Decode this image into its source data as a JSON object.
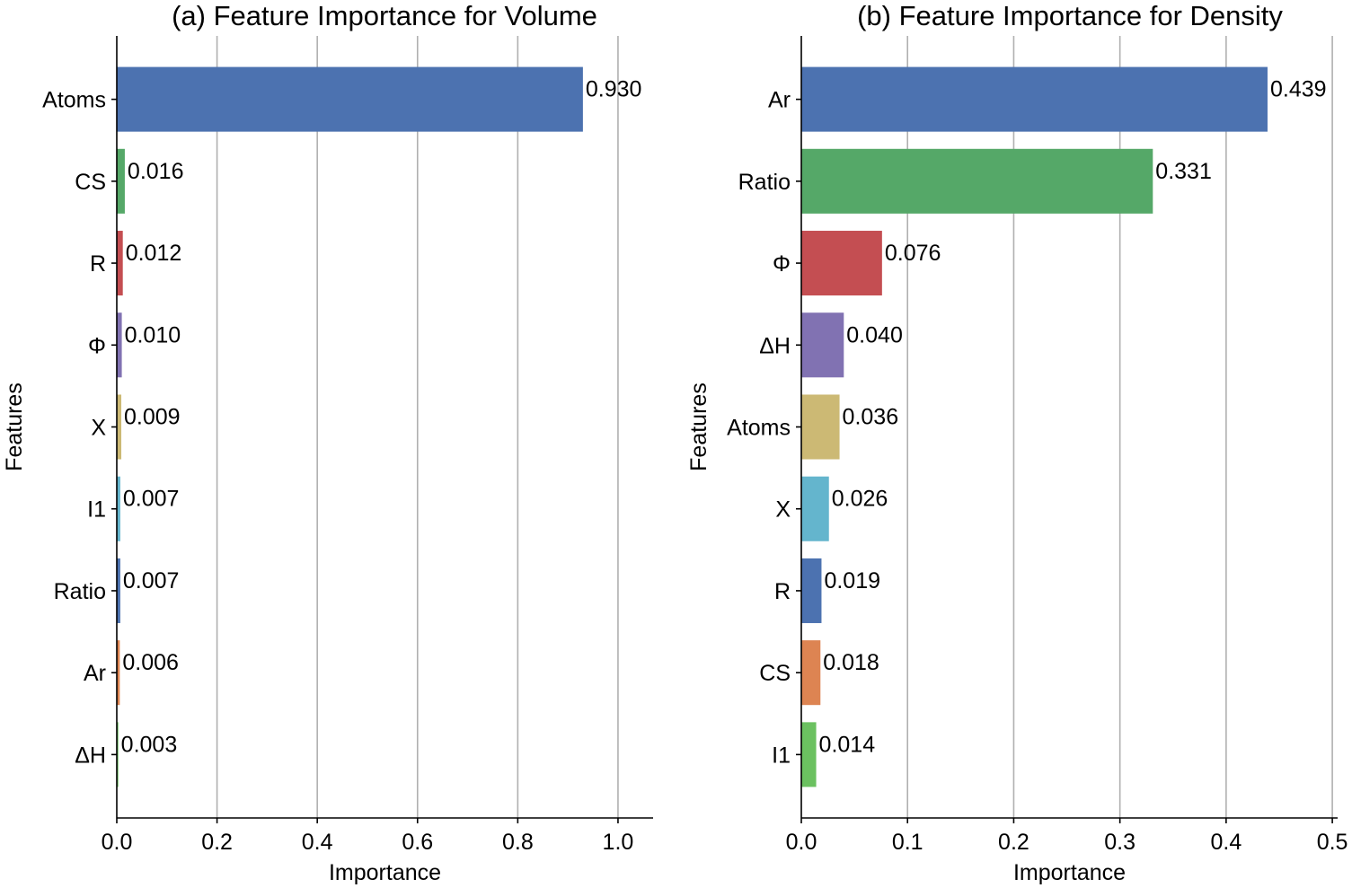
{
  "chart_data": [
    {
      "type": "bar",
      "orientation": "horizontal",
      "title": "(a) Feature Importance for Volume",
      "xlabel": "Importance",
      "ylabel": "Features",
      "xlim": [
        0,
        1.07
      ],
      "xticks": [
        "0.0",
        "0.2",
        "0.4",
        "0.6",
        "0.8",
        "1.0"
      ],
      "xtick_values": [
        0,
        0.2,
        0.4,
        0.6,
        0.8,
        1.0
      ],
      "grid": "vertical",
      "categories": [
        "Atoms",
        "CS",
        "R",
        "Φ",
        "X",
        "I1",
        "Ratio",
        "Ar",
        "ΔH"
      ],
      "values": [
        0.93,
        0.016,
        0.012,
        0.01,
        0.009,
        0.007,
        0.007,
        0.006,
        0.003
      ],
      "value_labels": [
        "0.930",
        "0.016",
        "0.012",
        "0.010",
        "0.009",
        "0.007",
        "0.007",
        "0.006",
        "0.003"
      ],
      "colors": [
        "#4c72b0",
        "#55a868",
        "#c44e52",
        "#8172b2",
        "#ccb974",
        "#64b5cd",
        "#4c72b0",
        "#dd8452",
        "#6bc160"
      ]
    },
    {
      "type": "bar",
      "orientation": "horizontal",
      "title": "(b) Feature Importance for Density",
      "xlabel": "Importance",
      "ylabel": "Features",
      "xlim": [
        0,
        0.505
      ],
      "xticks": [
        "0.0",
        "0.1",
        "0.2",
        "0.3",
        "0.4",
        "0.5"
      ],
      "xtick_values": [
        0,
        0.1,
        0.2,
        0.3,
        0.4,
        0.5
      ],
      "grid": "vertical",
      "categories": [
        "Ar",
        "Ratio",
        "Φ",
        "ΔH",
        "Atoms",
        "X",
        "R",
        "CS",
        "I1"
      ],
      "values": [
        0.439,
        0.331,
        0.076,
        0.04,
        0.036,
        0.026,
        0.019,
        0.018,
        0.014
      ],
      "value_labels": [
        "0.439",
        "0.331",
        "0.076",
        "0.040",
        "0.036",
        "0.026",
        "0.019",
        "0.018",
        "0.014"
      ],
      "colors": [
        "#4c72b0",
        "#55a868",
        "#c44e52",
        "#8172b2",
        "#ccb974",
        "#64b5cd",
        "#4c72b0",
        "#dd8452",
        "#6bc160"
      ]
    }
  ]
}
